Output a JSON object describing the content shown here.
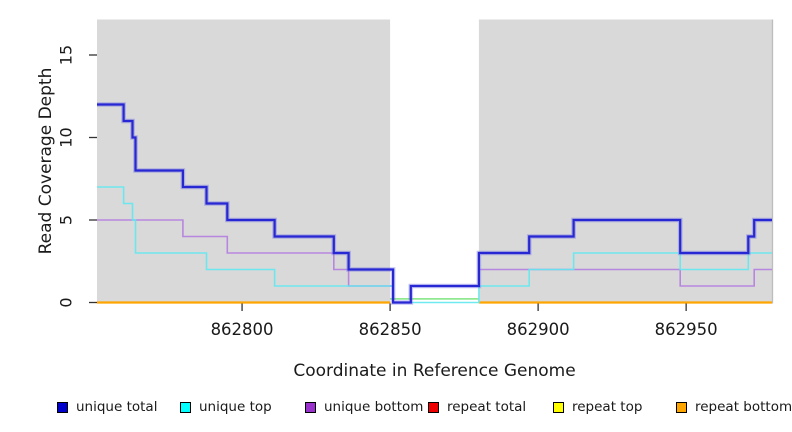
{
  "chart_data": {
    "type": "line",
    "subtype": "step-coverage",
    "title": "",
    "xlabel": "Coordinate in Reference Genome",
    "ylabel": "Read Coverage Depth",
    "x_range": [
      862751,
      862979
    ],
    "y_range": [
      0,
      17.15
    ],
    "x_ticks": [
      862800,
      862850,
      862900,
      862950
    ],
    "y_ticks": [
      0,
      5,
      10,
      15
    ],
    "grid": false,
    "plot_bg_color": "#d9d9d9",
    "highlight_band": {
      "x1": 862850,
      "x2": 862880,
      "color": "#ffffff"
    },
    "band_overlap_artifact": {
      "color": "#90e890",
      "y_value": 0.22,
      "note": "light-green zero-depth overlap line visible only inside white band"
    },
    "series": [
      {
        "name": "unique total",
        "color": "#2727d3",
        "halo_color": "rgba(100,100,230,0.38)",
        "line_width": 2.2,
        "step_points": [
          [
            862751,
            12
          ],
          [
            862760,
            11
          ],
          [
            862763,
            10
          ],
          [
            862764,
            8
          ],
          [
            862780,
            7
          ],
          [
            862788,
            6
          ],
          [
            862795,
            5
          ],
          [
            862811,
            4
          ],
          [
            862831,
            3
          ],
          [
            862836,
            2
          ],
          [
            862851,
            0
          ],
          [
            862857,
            1
          ],
          [
            862880,
            3
          ],
          [
            862897,
            4
          ],
          [
            862912,
            5
          ],
          [
            862948,
            3
          ],
          [
            862971,
            4
          ],
          [
            862973,
            5
          ]
        ]
      },
      {
        "name": "unique top",
        "color": "#60e8ef",
        "line_width": 1.6,
        "opacity": 0.9,
        "step_points": [
          [
            862751,
            7
          ],
          [
            862760,
            6
          ],
          [
            862763,
            5
          ],
          [
            862764,
            3
          ],
          [
            862788,
            2
          ],
          [
            862811,
            1
          ],
          [
            862851,
            0
          ],
          [
            862880,
            1
          ],
          [
            862897,
            2
          ],
          [
            862912,
            3
          ],
          [
            862948,
            2
          ],
          [
            862971,
            3
          ]
        ]
      },
      {
        "name": "unique bottom",
        "color": "#b583df",
        "line_width": 1.6,
        "opacity": 0.95,
        "step_points": [
          [
            862751,
            5
          ],
          [
            862780,
            4
          ],
          [
            862795,
            3
          ],
          [
            862831,
            2
          ],
          [
            862836,
            1
          ],
          [
            862851,
            0
          ],
          [
            862857,
            1
          ],
          [
            862880,
            2
          ],
          [
            862948,
            1
          ],
          [
            862973,
            2
          ]
        ]
      },
      {
        "name": "repeat total",
        "color": "#cc0000",
        "line_width": 2,
        "gap_in_band": true,
        "step_points": [
          [
            862751,
            0
          ]
        ]
      },
      {
        "name": "repeat top",
        "color": "#ffff00",
        "line_width": 2,
        "gap_in_band": true,
        "step_points": [
          [
            862751,
            0
          ]
        ]
      },
      {
        "name": "repeat bottom",
        "color": "#ffa500",
        "line_width": 2.2,
        "gap_in_band": true,
        "step_points": [
          [
            862751,
            0
          ]
        ]
      }
    ]
  },
  "legend": {
    "items": [
      {
        "label": "unique total",
        "color": "#0000cd"
      },
      {
        "label": "unique top",
        "color": "#00ffff"
      },
      {
        "label": "unique bottom",
        "color": "#9932cc"
      },
      {
        "label": "repeat total",
        "color": "#ee0000"
      },
      {
        "label": "repeat top",
        "color": "#ffff00"
      },
      {
        "label": "repeat bottom",
        "color": "#ffa500"
      }
    ]
  }
}
